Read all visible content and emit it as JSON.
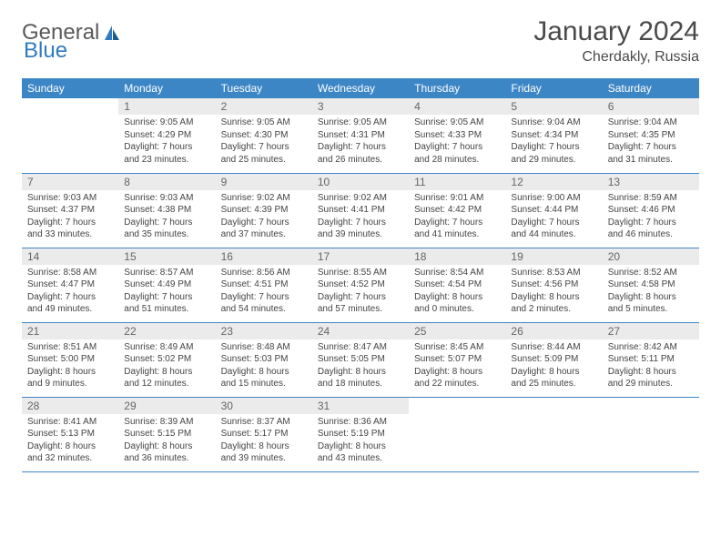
{
  "brand": {
    "text1": "General",
    "text2": "Blue"
  },
  "title": "January 2024",
  "location": "Cherdakly, Russia",
  "colors": {
    "header_bg": "#3d86c6",
    "header_text": "#ffffff",
    "daynum_bg": "#ebebeb",
    "border": "#3d86c6",
    "brand_gray": "#5a5a5a",
    "brand_blue": "#2f7bbf"
  },
  "weekdays": [
    "Sunday",
    "Monday",
    "Tuesday",
    "Wednesday",
    "Thursday",
    "Friday",
    "Saturday"
  ],
  "weeks": [
    [
      {
        "n": "",
        "sr": "",
        "ss": "",
        "dl1": "",
        "dl2": ""
      },
      {
        "n": "1",
        "sr": "Sunrise: 9:05 AM",
        "ss": "Sunset: 4:29 PM",
        "dl1": "Daylight: 7 hours",
        "dl2": "and 23 minutes."
      },
      {
        "n": "2",
        "sr": "Sunrise: 9:05 AM",
        "ss": "Sunset: 4:30 PM",
        "dl1": "Daylight: 7 hours",
        "dl2": "and 25 minutes."
      },
      {
        "n": "3",
        "sr": "Sunrise: 9:05 AM",
        "ss": "Sunset: 4:31 PM",
        "dl1": "Daylight: 7 hours",
        "dl2": "and 26 minutes."
      },
      {
        "n": "4",
        "sr": "Sunrise: 9:05 AM",
        "ss": "Sunset: 4:33 PM",
        "dl1": "Daylight: 7 hours",
        "dl2": "and 28 minutes."
      },
      {
        "n": "5",
        "sr": "Sunrise: 9:04 AM",
        "ss": "Sunset: 4:34 PM",
        "dl1": "Daylight: 7 hours",
        "dl2": "and 29 minutes."
      },
      {
        "n": "6",
        "sr": "Sunrise: 9:04 AM",
        "ss": "Sunset: 4:35 PM",
        "dl1": "Daylight: 7 hours",
        "dl2": "and 31 minutes."
      }
    ],
    [
      {
        "n": "7",
        "sr": "Sunrise: 9:03 AM",
        "ss": "Sunset: 4:37 PM",
        "dl1": "Daylight: 7 hours",
        "dl2": "and 33 minutes."
      },
      {
        "n": "8",
        "sr": "Sunrise: 9:03 AM",
        "ss": "Sunset: 4:38 PM",
        "dl1": "Daylight: 7 hours",
        "dl2": "and 35 minutes."
      },
      {
        "n": "9",
        "sr": "Sunrise: 9:02 AM",
        "ss": "Sunset: 4:39 PM",
        "dl1": "Daylight: 7 hours",
        "dl2": "and 37 minutes."
      },
      {
        "n": "10",
        "sr": "Sunrise: 9:02 AM",
        "ss": "Sunset: 4:41 PM",
        "dl1": "Daylight: 7 hours",
        "dl2": "and 39 minutes."
      },
      {
        "n": "11",
        "sr": "Sunrise: 9:01 AM",
        "ss": "Sunset: 4:42 PM",
        "dl1": "Daylight: 7 hours",
        "dl2": "and 41 minutes."
      },
      {
        "n": "12",
        "sr": "Sunrise: 9:00 AM",
        "ss": "Sunset: 4:44 PM",
        "dl1": "Daylight: 7 hours",
        "dl2": "and 44 minutes."
      },
      {
        "n": "13",
        "sr": "Sunrise: 8:59 AM",
        "ss": "Sunset: 4:46 PM",
        "dl1": "Daylight: 7 hours",
        "dl2": "and 46 minutes."
      }
    ],
    [
      {
        "n": "14",
        "sr": "Sunrise: 8:58 AM",
        "ss": "Sunset: 4:47 PM",
        "dl1": "Daylight: 7 hours",
        "dl2": "and 49 minutes."
      },
      {
        "n": "15",
        "sr": "Sunrise: 8:57 AM",
        "ss": "Sunset: 4:49 PM",
        "dl1": "Daylight: 7 hours",
        "dl2": "and 51 minutes."
      },
      {
        "n": "16",
        "sr": "Sunrise: 8:56 AM",
        "ss": "Sunset: 4:51 PM",
        "dl1": "Daylight: 7 hours",
        "dl2": "and 54 minutes."
      },
      {
        "n": "17",
        "sr": "Sunrise: 8:55 AM",
        "ss": "Sunset: 4:52 PM",
        "dl1": "Daylight: 7 hours",
        "dl2": "and 57 minutes."
      },
      {
        "n": "18",
        "sr": "Sunrise: 8:54 AM",
        "ss": "Sunset: 4:54 PM",
        "dl1": "Daylight: 8 hours",
        "dl2": "and 0 minutes."
      },
      {
        "n": "19",
        "sr": "Sunrise: 8:53 AM",
        "ss": "Sunset: 4:56 PM",
        "dl1": "Daylight: 8 hours",
        "dl2": "and 2 minutes."
      },
      {
        "n": "20",
        "sr": "Sunrise: 8:52 AM",
        "ss": "Sunset: 4:58 PM",
        "dl1": "Daylight: 8 hours",
        "dl2": "and 5 minutes."
      }
    ],
    [
      {
        "n": "21",
        "sr": "Sunrise: 8:51 AM",
        "ss": "Sunset: 5:00 PM",
        "dl1": "Daylight: 8 hours",
        "dl2": "and 9 minutes."
      },
      {
        "n": "22",
        "sr": "Sunrise: 8:49 AM",
        "ss": "Sunset: 5:02 PM",
        "dl1": "Daylight: 8 hours",
        "dl2": "and 12 minutes."
      },
      {
        "n": "23",
        "sr": "Sunrise: 8:48 AM",
        "ss": "Sunset: 5:03 PM",
        "dl1": "Daylight: 8 hours",
        "dl2": "and 15 minutes."
      },
      {
        "n": "24",
        "sr": "Sunrise: 8:47 AM",
        "ss": "Sunset: 5:05 PM",
        "dl1": "Daylight: 8 hours",
        "dl2": "and 18 minutes."
      },
      {
        "n": "25",
        "sr": "Sunrise: 8:45 AM",
        "ss": "Sunset: 5:07 PM",
        "dl1": "Daylight: 8 hours",
        "dl2": "and 22 minutes."
      },
      {
        "n": "26",
        "sr": "Sunrise: 8:44 AM",
        "ss": "Sunset: 5:09 PM",
        "dl1": "Daylight: 8 hours",
        "dl2": "and 25 minutes."
      },
      {
        "n": "27",
        "sr": "Sunrise: 8:42 AM",
        "ss": "Sunset: 5:11 PM",
        "dl1": "Daylight: 8 hours",
        "dl2": "and 29 minutes."
      }
    ],
    [
      {
        "n": "28",
        "sr": "Sunrise: 8:41 AM",
        "ss": "Sunset: 5:13 PM",
        "dl1": "Daylight: 8 hours",
        "dl2": "and 32 minutes."
      },
      {
        "n": "29",
        "sr": "Sunrise: 8:39 AM",
        "ss": "Sunset: 5:15 PM",
        "dl1": "Daylight: 8 hours",
        "dl2": "and 36 minutes."
      },
      {
        "n": "30",
        "sr": "Sunrise: 8:37 AM",
        "ss": "Sunset: 5:17 PM",
        "dl1": "Daylight: 8 hours",
        "dl2": "and 39 minutes."
      },
      {
        "n": "31",
        "sr": "Sunrise: 8:36 AM",
        "ss": "Sunset: 5:19 PM",
        "dl1": "Daylight: 8 hours",
        "dl2": "and 43 minutes."
      },
      {
        "n": "",
        "sr": "",
        "ss": "",
        "dl1": "",
        "dl2": ""
      },
      {
        "n": "",
        "sr": "",
        "ss": "",
        "dl1": "",
        "dl2": ""
      },
      {
        "n": "",
        "sr": "",
        "ss": "",
        "dl1": "",
        "dl2": ""
      }
    ]
  ]
}
